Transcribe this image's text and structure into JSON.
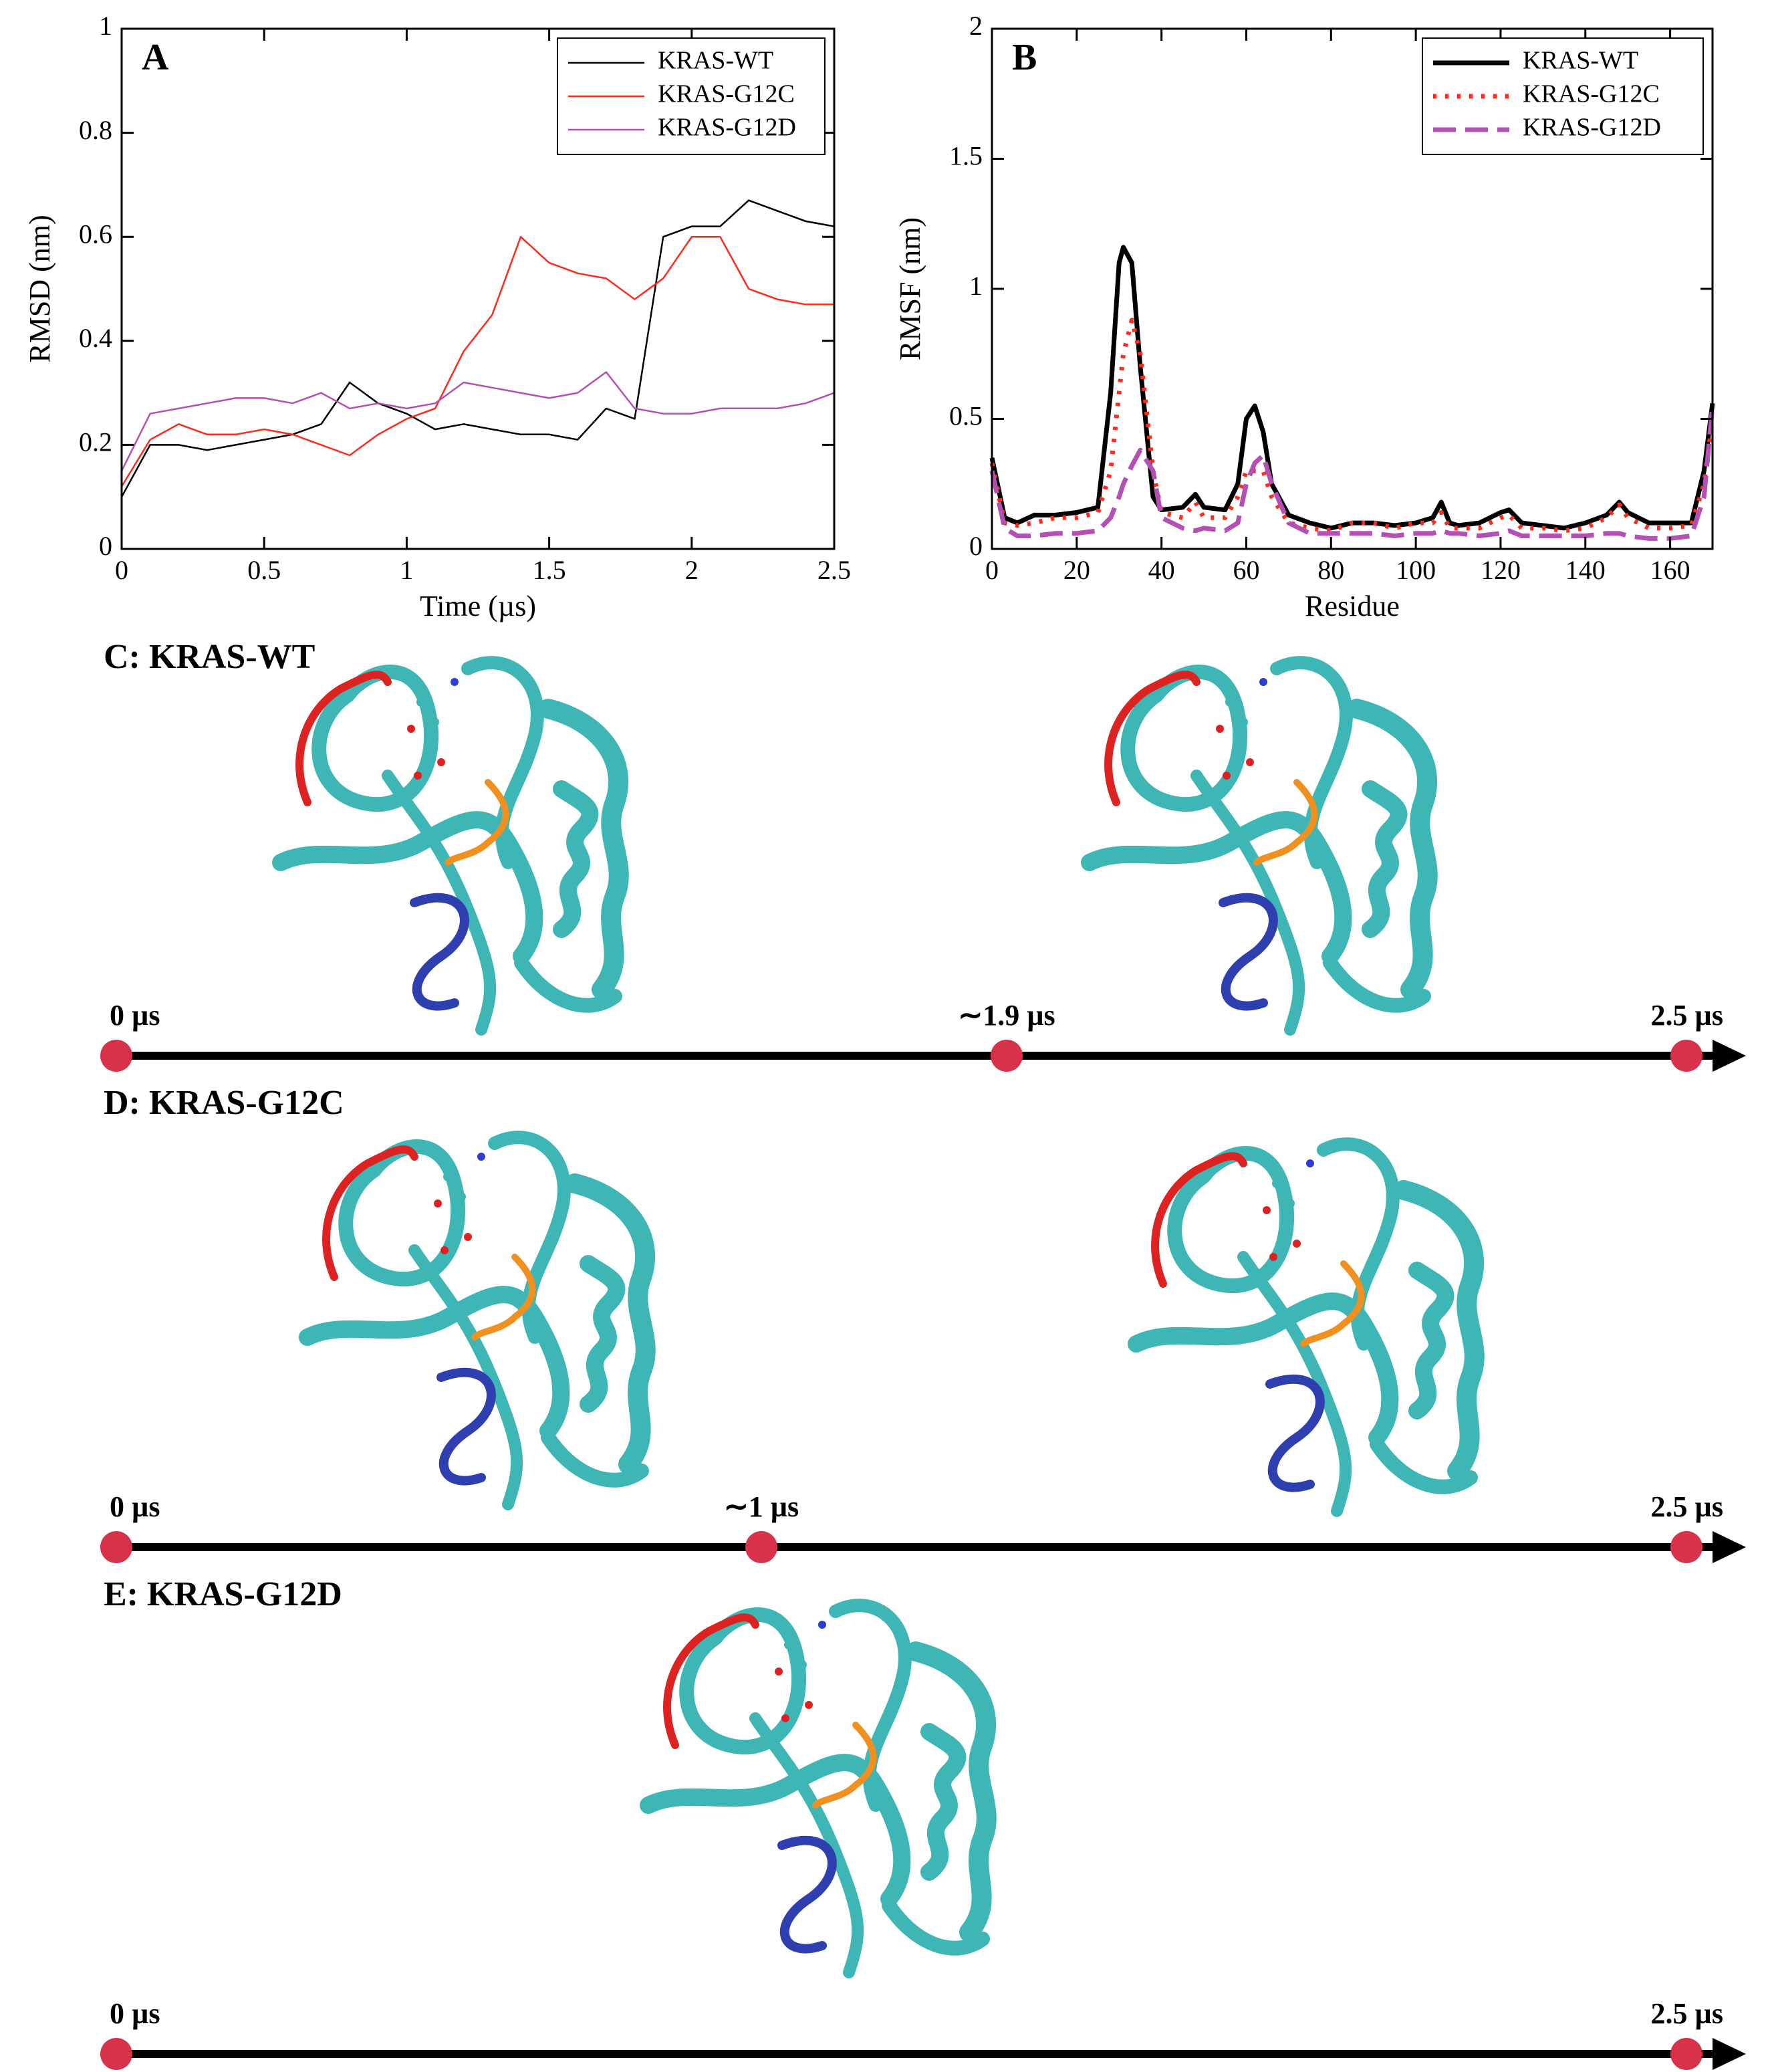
{
  "chart_data": [
    {
      "type": "line",
      "panel_label": "A",
      "xlabel": "Time (µs)",
      "ylabel": "RMSD (nm)",
      "x": [
        0,
        0.1,
        0.2,
        0.3,
        0.4,
        0.5,
        0.6,
        0.7,
        0.8,
        0.9,
        1.0,
        1.1,
        1.2,
        1.3,
        1.4,
        1.5,
        1.6,
        1.7,
        1.8,
        1.9,
        2.0,
        2.1,
        2.2,
        2.3,
        2.4,
        2.5
      ],
      "series": [
        {
          "name": "KRAS-WT",
          "color": "#000000",
          "line_style": "solid",
          "values": [
            0.1,
            0.2,
            0.2,
            0.19,
            0.2,
            0.21,
            0.22,
            0.24,
            0.32,
            0.28,
            0.26,
            0.23,
            0.24,
            0.23,
            0.22,
            0.22,
            0.21,
            0.27,
            0.25,
            0.6,
            0.62,
            0.62,
            0.67,
            0.65,
            0.63,
            0.62
          ]
        },
        {
          "name": "KRAS-G12C",
          "color": "#ff2a1a",
          "line_style": "solid",
          "values": [
            0.12,
            0.21,
            0.24,
            0.22,
            0.22,
            0.23,
            0.22,
            0.2,
            0.18,
            0.22,
            0.25,
            0.27,
            0.38,
            0.45,
            0.6,
            0.55,
            0.53,
            0.52,
            0.48,
            0.52,
            0.6,
            0.6,
            0.5,
            0.48,
            0.47,
            0.47
          ]
        },
        {
          "name": "KRAS-G12D",
          "color": "#b44fb4",
          "line_style": "solid",
          "values": [
            0.15,
            0.26,
            0.27,
            0.28,
            0.29,
            0.29,
            0.28,
            0.3,
            0.27,
            0.28,
            0.27,
            0.28,
            0.32,
            0.31,
            0.3,
            0.29,
            0.3,
            0.34,
            0.27,
            0.26,
            0.26,
            0.27,
            0.27,
            0.27,
            0.28,
            0.3
          ]
        }
      ],
      "xlim": [
        0,
        2.5
      ],
      "ylim": [
        0,
        1
      ],
      "xticks": [
        0,
        0.5,
        1,
        1.5,
        2,
        2.5
      ],
      "yticks": [
        0,
        0.2,
        0.4,
        0.6,
        0.8,
        1
      ],
      "legend": "upper right",
      "grid": false
    },
    {
      "type": "line",
      "panel_label": "B",
      "xlabel": "Residue",
      "ylabel": "RMSF (nm)",
      "x": [
        0,
        3,
        6,
        10,
        15,
        20,
        25,
        28,
        30,
        31,
        33,
        35,
        38,
        40,
        45,
        48,
        50,
        55,
        58,
        60,
        62,
        64,
        66,
        70,
        75,
        80,
        85,
        90,
        95,
        100,
        104,
        106,
        108,
        110,
        115,
        120,
        122,
        125,
        130,
        135,
        140,
        145,
        148,
        150,
        155,
        160,
        165,
        168,
        170
      ],
      "series": [
        {
          "name": "KRAS-WT",
          "color": "#000000",
          "line_style": "solid",
          "values": [
            0.35,
            0.12,
            0.1,
            0.13,
            0.13,
            0.14,
            0.16,
            0.6,
            1.1,
            1.16,
            1.1,
            0.7,
            0.2,
            0.15,
            0.16,
            0.21,
            0.16,
            0.15,
            0.25,
            0.5,
            0.55,
            0.45,
            0.25,
            0.13,
            0.1,
            0.08,
            0.1,
            0.1,
            0.09,
            0.1,
            0.12,
            0.18,
            0.1,
            0.09,
            0.1,
            0.14,
            0.15,
            0.1,
            0.09,
            0.08,
            0.1,
            0.13,
            0.18,
            0.14,
            0.1,
            0.1,
            0.1,
            0.3,
            0.56
          ]
        },
        {
          "name": "KRAS-G12C",
          "color": "#ff2a1a",
          "line_style": "dotted",
          "values": [
            0.33,
            0.1,
            0.09,
            0.1,
            0.12,
            0.12,
            0.14,
            0.3,
            0.6,
            0.75,
            0.88,
            0.75,
            0.3,
            0.14,
            0.12,
            0.18,
            0.12,
            0.12,
            0.2,
            0.3,
            0.3,
            0.3,
            0.2,
            0.1,
            0.08,
            0.07,
            0.1,
            0.1,
            0.08,
            0.1,
            0.1,
            0.14,
            0.08,
            0.08,
            0.08,
            0.12,
            0.13,
            0.08,
            0.08,
            0.07,
            0.08,
            0.12,
            0.17,
            0.12,
            0.08,
            0.08,
            0.09,
            0.25,
            0.5
          ]
        },
        {
          "name": "KRAS-G12D",
          "color": "#b44fb4",
          "line_style": "dashed",
          "values": [
            0.3,
            0.08,
            0.05,
            0.05,
            0.06,
            0.06,
            0.07,
            0.12,
            0.2,
            0.25,
            0.32,
            0.38,
            0.3,
            0.12,
            0.08,
            0.07,
            0.08,
            0.07,
            0.1,
            0.25,
            0.33,
            0.36,
            0.25,
            0.1,
            0.06,
            0.06,
            0.06,
            0.06,
            0.05,
            0.06,
            0.06,
            0.07,
            0.06,
            0.06,
            0.05,
            0.06,
            0.07,
            0.05,
            0.05,
            0.05,
            0.05,
            0.06,
            0.06,
            0.05,
            0.04,
            0.04,
            0.05,
            0.2,
            0.55
          ]
        }
      ],
      "xlim": [
        0,
        170
      ],
      "ylim": [
        0,
        2
      ],
      "xticks": [
        0,
        20,
        40,
        60,
        80,
        100,
        120,
        140,
        160
      ],
      "yticks": [
        0,
        0.5,
        1,
        1.5,
        2
      ],
      "legend": "upper right",
      "grid": false
    }
  ],
  "panels": [
    {
      "label": "C: KRAS-WT",
      "timeline": [
        "0 µs",
        "∼1.9 µs",
        "2.5 µs"
      ]
    },
    {
      "label": "D: KRAS-G12C",
      "timeline": [
        "0 µs",
        "∼1 µs",
        "2.5 µs"
      ]
    },
    {
      "label": "E: KRAS-G12D",
      "timeline": [
        "0 µs",
        "2.5 µs"
      ]
    }
  ]
}
